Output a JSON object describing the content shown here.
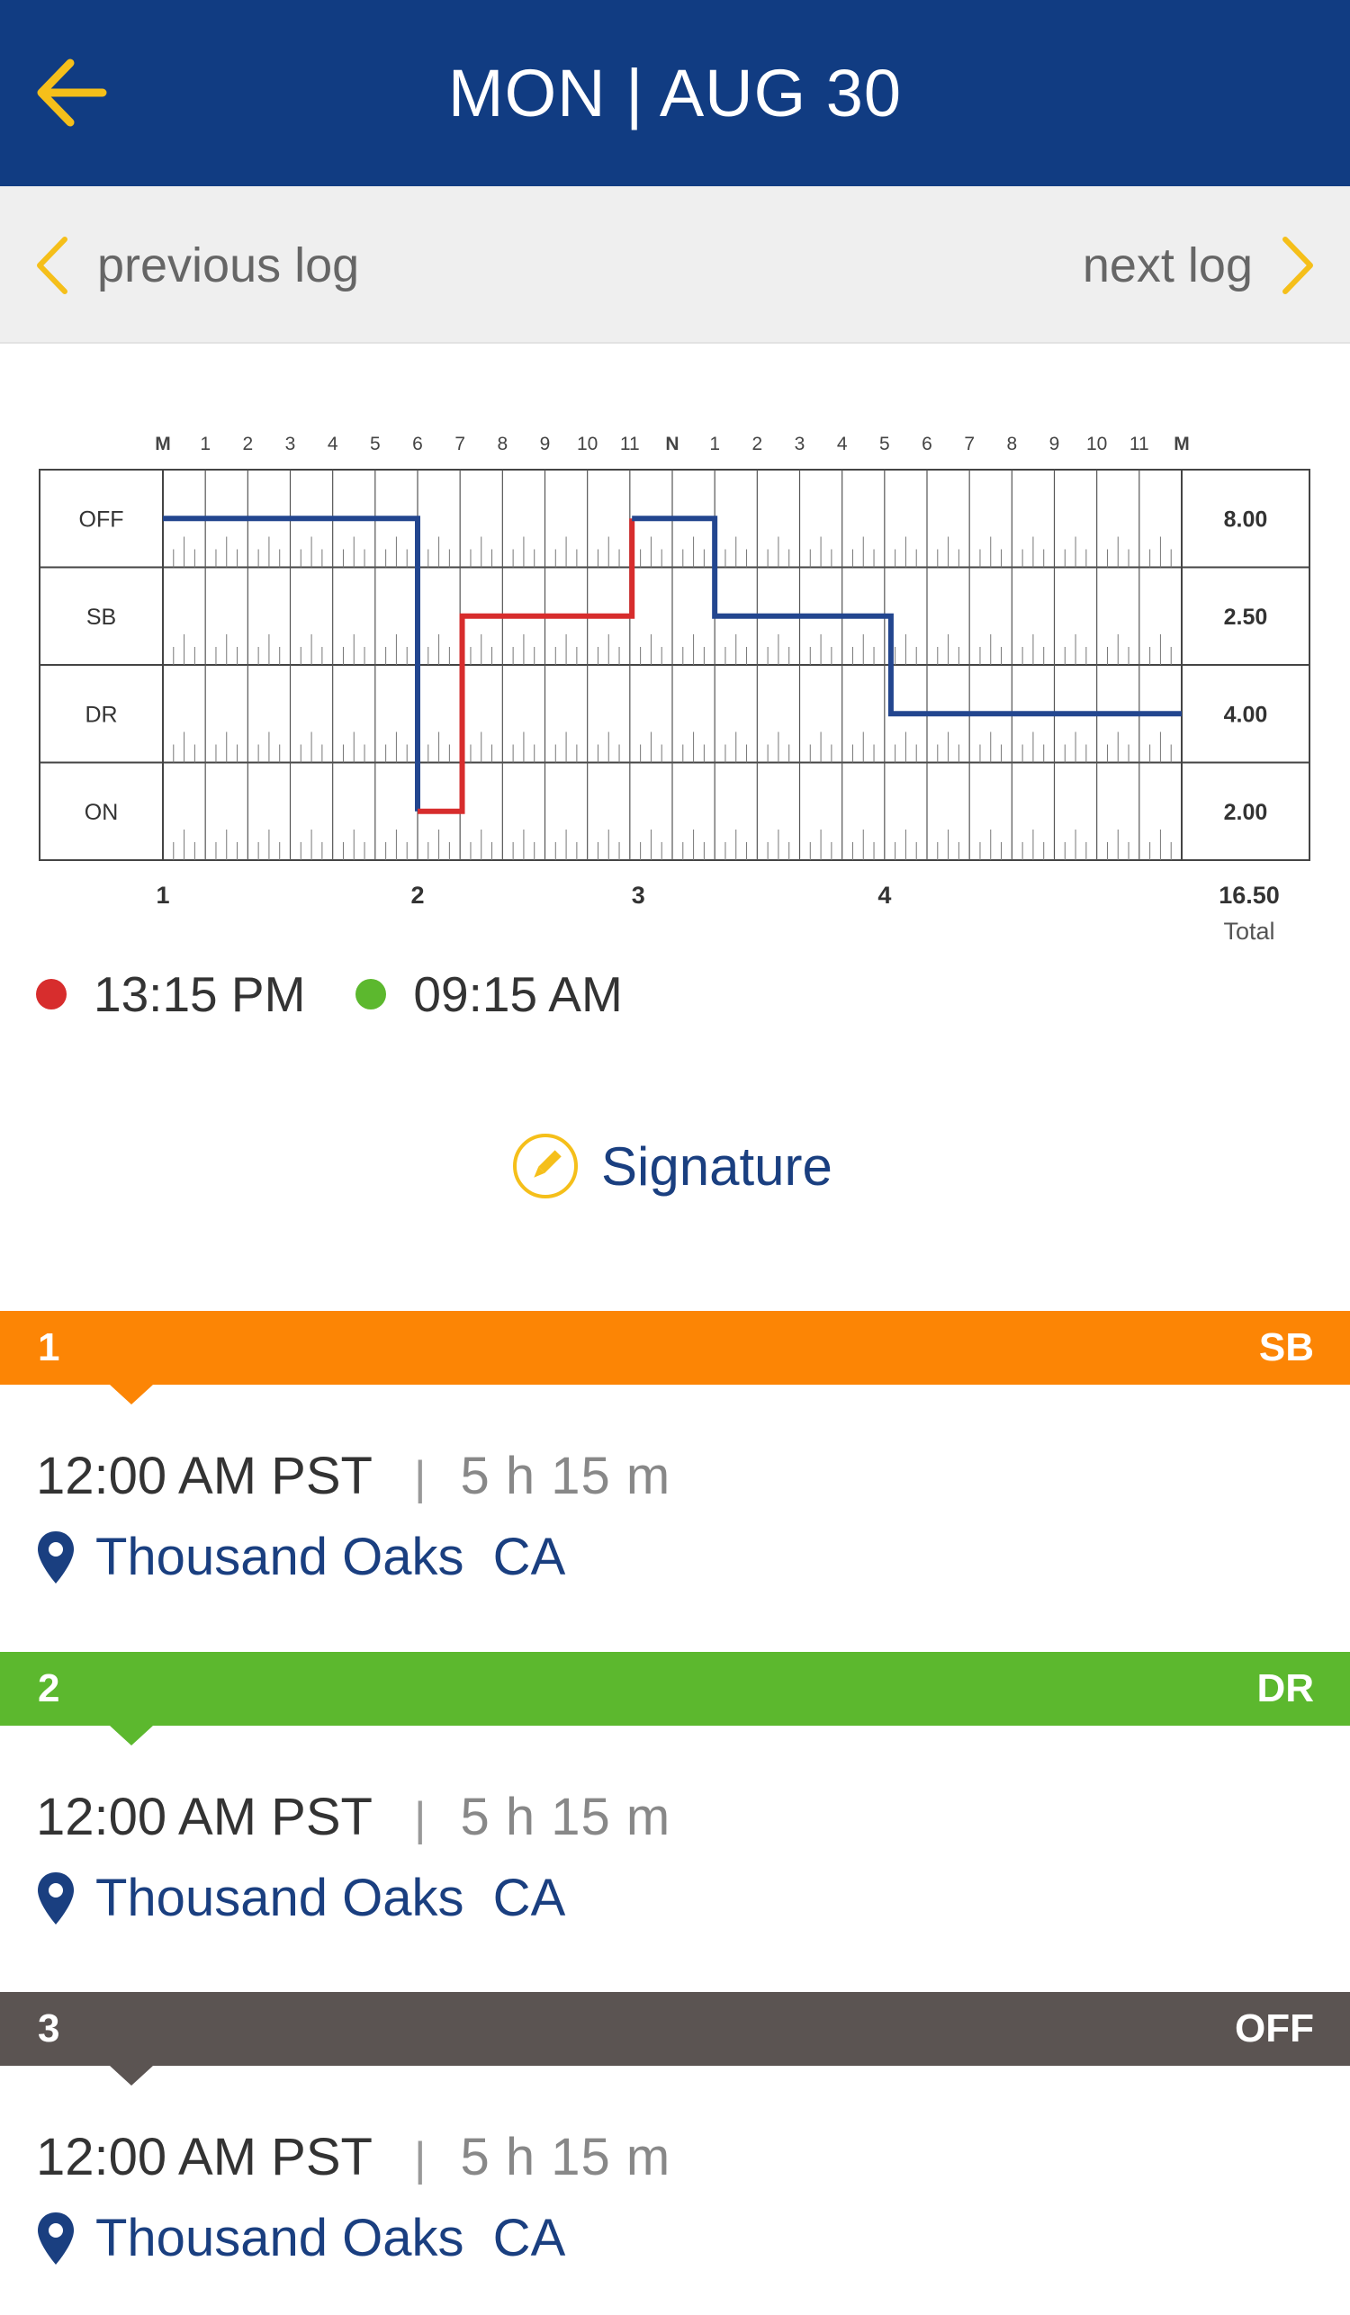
{
  "header": {
    "title": "MON | AUG 30"
  },
  "lognav": {
    "previous_label": "previous log",
    "next_label": "next log"
  },
  "colors": {
    "header_bg": "#113c82",
    "accent_yellow": "#f5bf1a",
    "line_blue": "#23468f",
    "line_red": "#d72d2d",
    "sb_orange": "#fc8505",
    "dr_green": "#5cb82e",
    "off_gray": "#5b5452"
  },
  "chart_data": {
    "type": "line",
    "title": "",
    "hour_labels": [
      "M",
      "1",
      "2",
      "3",
      "4",
      "5",
      "6",
      "7",
      "8",
      "9",
      "10",
      "11",
      "N",
      "1",
      "2",
      "3",
      "4",
      "5",
      "6",
      "7",
      "8",
      "9",
      "10",
      "11",
      "M"
    ],
    "statuses": [
      "OFF",
      "SB",
      "DR",
      "ON"
    ],
    "totals": [
      "8.00",
      "2.50",
      "4.00",
      "2.00"
    ],
    "grand_total": "16.50",
    "grand_total_label": "Total",
    "marker_labels": [
      "1",
      "2",
      "3",
      "4"
    ],
    "marker_hours": [
      0,
      6,
      11.2,
      17
    ],
    "series": [
      {
        "color": "blue",
        "points": [
          [
            0,
            "OFF"
          ],
          [
            6,
            "OFF"
          ],
          [
            6,
            "ON"
          ]
        ]
      },
      {
        "color": "red",
        "points": [
          [
            6,
            "ON"
          ],
          [
            7.05,
            "ON"
          ],
          [
            7.05,
            "SB"
          ],
          [
            11.05,
            "SB"
          ],
          [
            11.05,
            "OFF"
          ]
        ]
      },
      {
        "color": "blue",
        "points": [
          [
            11.05,
            "OFF"
          ],
          [
            13,
            "OFF"
          ],
          [
            13,
            "SB"
          ],
          [
            17.15,
            "SB"
          ],
          [
            17.15,
            "DR"
          ],
          [
            24,
            "DR"
          ]
        ]
      }
    ]
  },
  "times": {
    "red_time": "13:15 PM",
    "green_time": "09:15 AM"
  },
  "signature": {
    "label": "Signature"
  },
  "entries": [
    {
      "num": "1",
      "status": "SB",
      "color": "#fc8505",
      "time": "12:00 AM PST",
      "sep": "|",
      "duration": "5 h 15 m",
      "location": "Thousand Oaks  CA"
    },
    {
      "num": "2",
      "status": "DR",
      "color": "#5cb82e",
      "time": "12:00 AM PST",
      "sep": "|",
      "duration": "5 h 15 m",
      "location": "Thousand Oaks  CA"
    },
    {
      "num": "3",
      "status": "OFF",
      "color": "#5b5452",
      "time": "12:00 AM PST",
      "sep": "|",
      "duration": "5 h 15 m",
      "location": "Thousand Oaks  CA"
    }
  ]
}
